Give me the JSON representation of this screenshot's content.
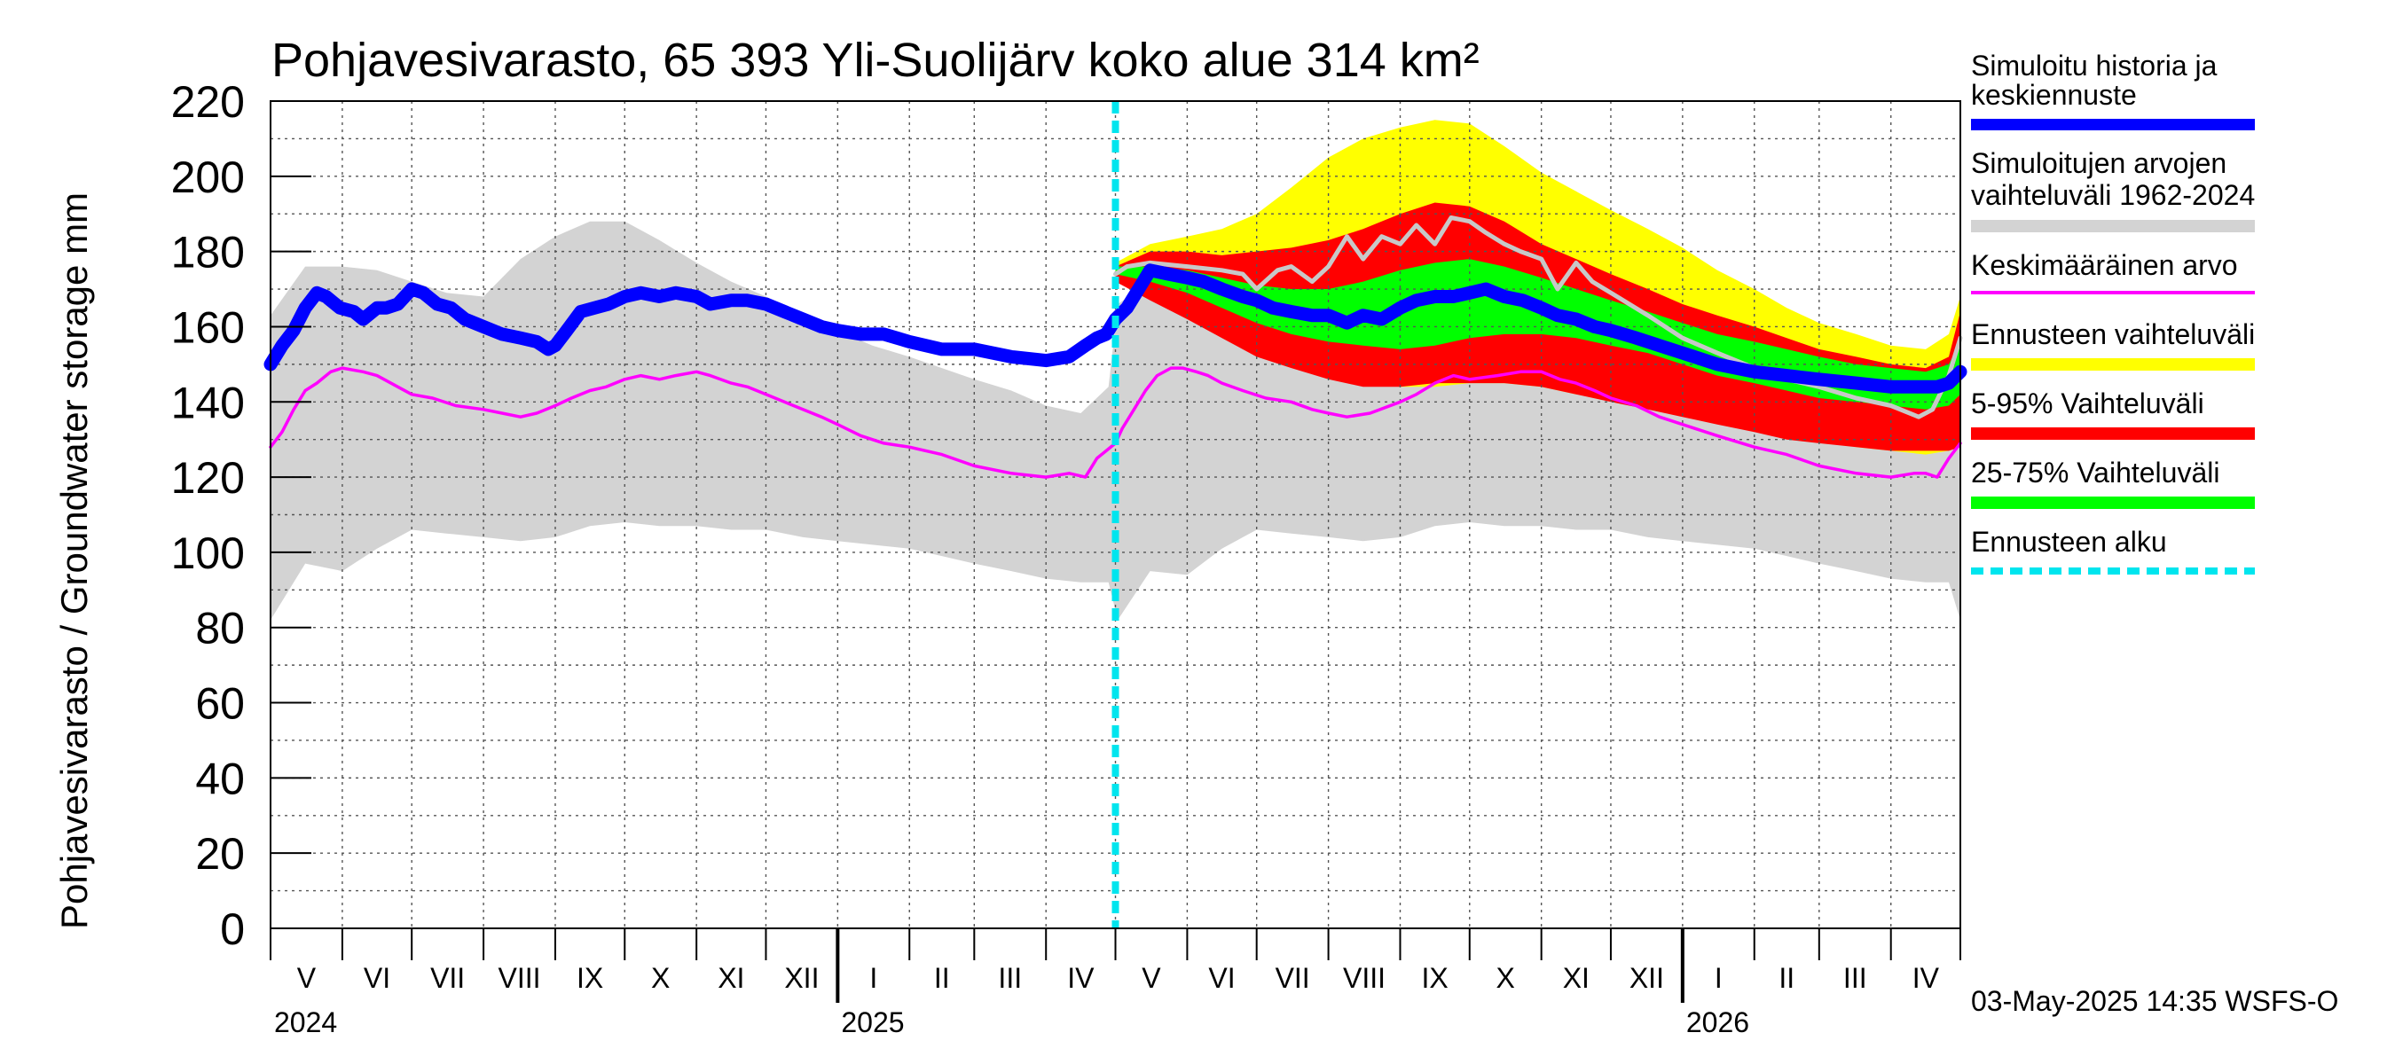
{
  "chart_data": {
    "type": "area",
    "title": "Pohjavesivarasto, 65 393 Yli-Suolijärv koko alue 314 km²",
    "ylabel": "Pohjavesivarasto / Groundwater storage   mm",
    "ylim": [
      0,
      220
    ],
    "yticks": [
      0,
      20,
      40,
      60,
      80,
      100,
      120,
      140,
      160,
      180,
      200,
      220
    ],
    "x_range_days": [
      0,
      730
    ],
    "forecast_start_day": 365,
    "month_labels": [
      {
        "label": "V",
        "start": 0,
        "end": 31
      },
      {
        "label": "VI",
        "start": 31,
        "end": 61
      },
      {
        "label": "VII",
        "start": 61,
        "end": 92
      },
      {
        "label": "VIII",
        "start": 92,
        "end": 123
      },
      {
        "label": "IX",
        "start": 123,
        "end": 153
      },
      {
        "label": "X",
        "start": 153,
        "end": 184
      },
      {
        "label": "XI",
        "start": 184,
        "end": 214
      },
      {
        "label": "XII",
        "start": 214,
        "end": 245
      },
      {
        "label": "I",
        "start": 245,
        "end": 276
      },
      {
        "label": "II",
        "start": 276,
        "end": 304
      },
      {
        "label": "III",
        "start": 304,
        "end": 335
      },
      {
        "label": "IV",
        "start": 335,
        "end": 365
      },
      {
        "label": "V",
        "start": 365,
        "end": 396
      },
      {
        "label": "VI",
        "start": 396,
        "end": 426
      },
      {
        "label": "VII",
        "start": 426,
        "end": 457
      },
      {
        "label": "VIII",
        "start": 457,
        "end": 488
      },
      {
        "label": "IX",
        "start": 488,
        "end": 518
      },
      {
        "label": "X",
        "start": 518,
        "end": 549
      },
      {
        "label": "XI",
        "start": 549,
        "end": 579
      },
      {
        "label": "XII",
        "start": 579,
        "end": 610
      },
      {
        "label": "I",
        "start": 610,
        "end": 641
      },
      {
        "label": "II",
        "start": 641,
        "end": 669
      },
      {
        "label": "III",
        "start": 669,
        "end": 700
      },
      {
        "label": "IV",
        "start": 700,
        "end": 730
      }
    ],
    "year_labels": [
      {
        "label": "2024",
        "day": 0
      },
      {
        "label": "2025",
        "day": 245
      },
      {
        "label": "2026",
        "day": 610
      }
    ],
    "series": [
      {
        "name": "Simuloitujen arvojen vaihteluväli 1962-2024",
        "type": "band",
        "color": "#d3d3d3",
        "x": [
          0,
          15,
          31,
          46,
          61,
          76,
          92,
          108,
          123,
          138,
          153,
          168,
          184,
          199,
          214,
          230,
          245,
          260,
          276,
          290,
          304,
          320,
          335,
          350,
          362,
          366,
          380,
          396,
          411,
          426,
          441,
          457,
          472,
          488,
          503,
          518,
          533,
          549,
          564,
          579,
          595,
          610,
          625,
          641,
          655,
          669,
          685,
          700,
          715,
          725,
          730
        ],
        "low": [
          82,
          97,
          95,
          101,
          106,
          105,
          104,
          103,
          104,
          107,
          108,
          107,
          107,
          106,
          106,
          104,
          103,
          102,
          101,
          99,
          97,
          95,
          93,
          92,
          92,
          82,
          95,
          94,
          101,
          106,
          105,
          104,
          103,
          104,
          107,
          108,
          107,
          107,
          106,
          106,
          104,
          103,
          102,
          101,
          99,
          97,
          95,
          93,
          92,
          92,
          82
        ],
        "high": [
          163,
          176,
          176,
          175,
          172,
          169,
          168,
          178,
          184,
          188,
          188,
          183,
          177,
          172,
          168,
          163,
          159,
          155,
          152,
          149,
          146,
          143,
          139,
          137,
          144,
          166,
          172,
          174,
          175,
          172,
          169,
          168,
          178,
          184,
          188,
          188,
          183,
          177,
          172,
          168,
          163,
          159,
          155,
          152,
          149,
          146,
          143,
          139,
          137,
          144,
          158
        ]
      },
      {
        "name": "Ennusteen vaihteluväli",
        "type": "band",
        "color": "#ffff00",
        "x": [
          365,
          380,
          396,
          411,
          426,
          441,
          457,
          472,
          488,
          503,
          518,
          533,
          549,
          564,
          579,
          595,
          610,
          625,
          641,
          655,
          669,
          685,
          700,
          715,
          725,
          730
        ],
        "low": [
          172,
          168,
          162,
          158,
          154,
          150,
          147,
          145,
          144,
          144,
          145,
          145,
          144,
          142,
          141,
          139,
          137,
          135,
          133,
          131,
          130,
          128,
          127,
          126,
          127,
          129
        ],
        "high": [
          177,
          182,
          184,
          186,
          190,
          197,
          205,
          210,
          213,
          215,
          214,
          208,
          201,
          196,
          191,
          186,
          181,
          175,
          170,
          165,
          161,
          158,
          155,
          154,
          158,
          168
        ]
      },
      {
        "name": "5-95% Vaihteluväli",
        "type": "band",
        "color": "#ff0000",
        "x": [
          365,
          380,
          396,
          411,
          426,
          441,
          457,
          472,
          488,
          503,
          518,
          533,
          549,
          564,
          579,
          595,
          610,
          625,
          641,
          655,
          669,
          685,
          700,
          715,
          725,
          730
        ],
        "low": [
          172,
          167,
          162,
          157,
          152,
          149,
          146,
          144,
          144,
          145,
          145,
          145,
          144,
          142,
          140,
          138,
          136,
          134,
          132,
          130,
          129,
          128,
          127,
          127,
          127,
          128
        ],
        "high": [
          176,
          180,
          180,
          179,
          180,
          181,
          183,
          186,
          190,
          193,
          192,
          188,
          182,
          178,
          174,
          170,
          166,
          163,
          160,
          157,
          154,
          152,
          150,
          149,
          152,
          164
        ]
      },
      {
        "name": "25-75% Vaihteluväli",
        "type": "band",
        "color": "#00ff00",
        "x": [
          365,
          380,
          396,
          411,
          426,
          441,
          457,
          472,
          488,
          503,
          518,
          533,
          549,
          564,
          579,
          595,
          610,
          625,
          641,
          655,
          669,
          685,
          700,
          715,
          725,
          730
        ],
        "low": [
          174,
          172,
          169,
          165,
          161,
          158,
          156,
          155,
          154,
          155,
          157,
          158,
          158,
          157,
          155,
          153,
          150,
          147,
          145,
          143,
          141,
          140,
          139,
          138,
          139,
          142
        ],
        "high": [
          176,
          176,
          175,
          173,
          171,
          170,
          170,
          172,
          175,
          177,
          178,
          176,
          173,
          170,
          167,
          164,
          161,
          158,
          156,
          154,
          152,
          150,
          149,
          148,
          150,
          156
        ]
      },
      {
        "name": "Simuloitu (harmaa ennuste)",
        "type": "line",
        "color": "#c8c8c8",
        "x": [
          365,
          370,
          380,
          396,
          411,
          420,
          426,
          435,
          441,
          450,
          457,
          465,
          472,
          480,
          488,
          495,
          503,
          510,
          518,
          525,
          533,
          540,
          549,
          556,
          564,
          571,
          579,
          595,
          610,
          625,
          641,
          655,
          669,
          685,
          700,
          712,
          718,
          725,
          730
        ],
        "y": [
          174,
          176,
          177,
          176,
          175,
          174,
          170,
          175,
          176,
          172,
          176,
          184,
          178,
          184,
          182,
          187,
          182,
          189,
          188,
          185,
          182,
          180,
          178,
          170,
          177,
          172,
          169,
          163,
          157,
          153,
          149,
          146,
          144,
          141,
          139,
          136,
          138,
          147,
          157
        ]
      },
      {
        "name": "Keskimääräinen arvo",
        "type": "line",
        "color": "#ff00ff",
        "x": [
          0,
          5,
          10,
          15,
          20,
          26,
          31,
          40,
          46,
          55,
          61,
          70,
          80,
          92,
          100,
          108,
          115,
          123,
          130,
          138,
          145,
          153,
          160,
          168,
          175,
          184,
          190,
          199,
          206,
          214,
          222,
          230,
          238,
          245,
          255,
          265,
          276,
          290,
          304,
          320,
          335,
          345,
          352,
          357,
          361,
          365,
          368,
          373,
          378,
          383,
          389,
          394,
          400,
          405,
          411,
          420,
          430,
          441,
          450,
          457,
          465,
          475,
          488,
          495,
          503,
          511,
          518,
          530,
          540,
          549,
          557,
          564,
          572,
          579,
          590,
          600,
          610,
          625,
          641,
          655,
          669,
          685,
          700,
          710,
          715,
          720,
          725,
          730
        ],
        "y": [
          128,
          132,
          138,
          143,
          145,
          148,
          149,
          148,
          147,
          144,
          142,
          141,
          139,
          138,
          137,
          136,
          137,
          139,
          141,
          143,
          144,
          146,
          147,
          146,
          147,
          148,
          147,
          145,
          144,
          142,
          140,
          138,
          136,
          134,
          131,
          129,
          128,
          126,
          123,
          121,
          120,
          121,
          120,
          125,
          127,
          129,
          133,
          138,
          143,
          147,
          149,
          149,
          148,
          147,
          145,
          143,
          141,
          140,
          138,
          137,
          136,
          137,
          140,
          142,
          145,
          147,
          146,
          147,
          148,
          148,
          146,
          145,
          143,
          141,
          139,
          136,
          134,
          131,
          128,
          126,
          123,
          121,
          120,
          121,
          121,
          120,
          125,
          129
        ]
      },
      {
        "name": "Simuloitu historia ja keskiennuste",
        "type": "line",
        "color": "#0000ff",
        "x": [
          0,
          5,
          10,
          15,
          20,
          24,
          30,
          36,
          40,
          46,
          50,
          55,
          61,
          66,
          72,
          78,
          84,
          92,
          100,
          108,
          115,
          120,
          123,
          128,
          134,
          140,
          146,
          153,
          160,
          168,
          175,
          184,
          190,
          199,
          206,
          214,
          222,
          230,
          238,
          245,
          255,
          265,
          276,
          290,
          304,
          320,
          335,
          345,
          352,
          357,
          361,
          365,
          370,
          375,
          380,
          388,
          396,
          403,
          411,
          420,
          426,
          433,
          441,
          450,
          457,
          465,
          472,
          480,
          488,
          495,
          503,
          511,
          518,
          525,
          533,
          541,
          549,
          556,
          564,
          572,
          579,
          590,
          600,
          610,
          625,
          641,
          655,
          669,
          685,
          700,
          712,
          720,
          725,
          730
        ],
        "y": [
          150,
          155,
          159,
          165,
          169,
          168,
          165,
          164,
          162,
          165,
          165,
          166,
          170,
          169,
          166,
          165,
          162,
          160,
          158,
          157,
          156,
          154,
          155,
          159,
          164,
          165,
          166,
          168,
          169,
          168,
          169,
          168,
          166,
          167,
          167,
          166,
          164,
          162,
          160,
          159,
          158,
          158,
          156,
          154,
          154,
          152,
          151,
          152,
          155,
          157,
          158,
          162,
          165,
          170,
          175,
          174,
          173,
          172,
          170,
          168,
          167,
          165,
          164,
          163,
          163,
          161,
          163,
          162,
          165,
          167,
          168,
          168,
          169,
          170,
          168,
          167,
          165,
          163,
          162,
          160,
          159,
          157,
          155,
          153,
          150,
          148,
          147,
          146,
          145,
          144,
          144,
          144,
          145,
          148
        ]
      }
    ],
    "legend": {
      "placement": "right",
      "items": [
        {
          "label": "Simuloitu historia ja keskiennuste",
          "color": "#0000ff",
          "style": "thick-line"
        },
        {
          "label": "Simuloitujen arvojen vaihteluväli 1962-2024",
          "color": "#d3d3d3",
          "style": "band"
        },
        {
          "label": "Keskimääräinen arvo",
          "color": "#ff00ff",
          "style": "line"
        },
        {
          "label": "Ennusteen vaihteluväli",
          "color": "#ffff00",
          "style": "band"
        },
        {
          "label": "5-95% Vaihteluväli",
          "color": "#ff0000",
          "style": "band"
        },
        {
          "label": "25-75% Vaihteluväli",
          "color": "#00ff00",
          "style": "band"
        },
        {
          "label": "Ennusteen alku",
          "color": "#00e5ee",
          "style": "dashed"
        }
      ]
    },
    "legend_text": {
      "simulated_history_1": "Simuloitu historia ja",
      "simulated_history_2": "keskiennuste",
      "range_1": "Simuloitujen arvojen",
      "range_2": "vaihteluväli 1962-2024",
      "mean": "Keskimääräinen arvo",
      "forecast_range": "Ennusteen vaihteluväli",
      "p5_95": "5-95% Vaihteluväli",
      "p25_75": "25-75% Vaihteluväli",
      "forecast_start": "Ennusteen alku"
    },
    "footer": "03-May-2025 14:35 WSFS-O"
  }
}
